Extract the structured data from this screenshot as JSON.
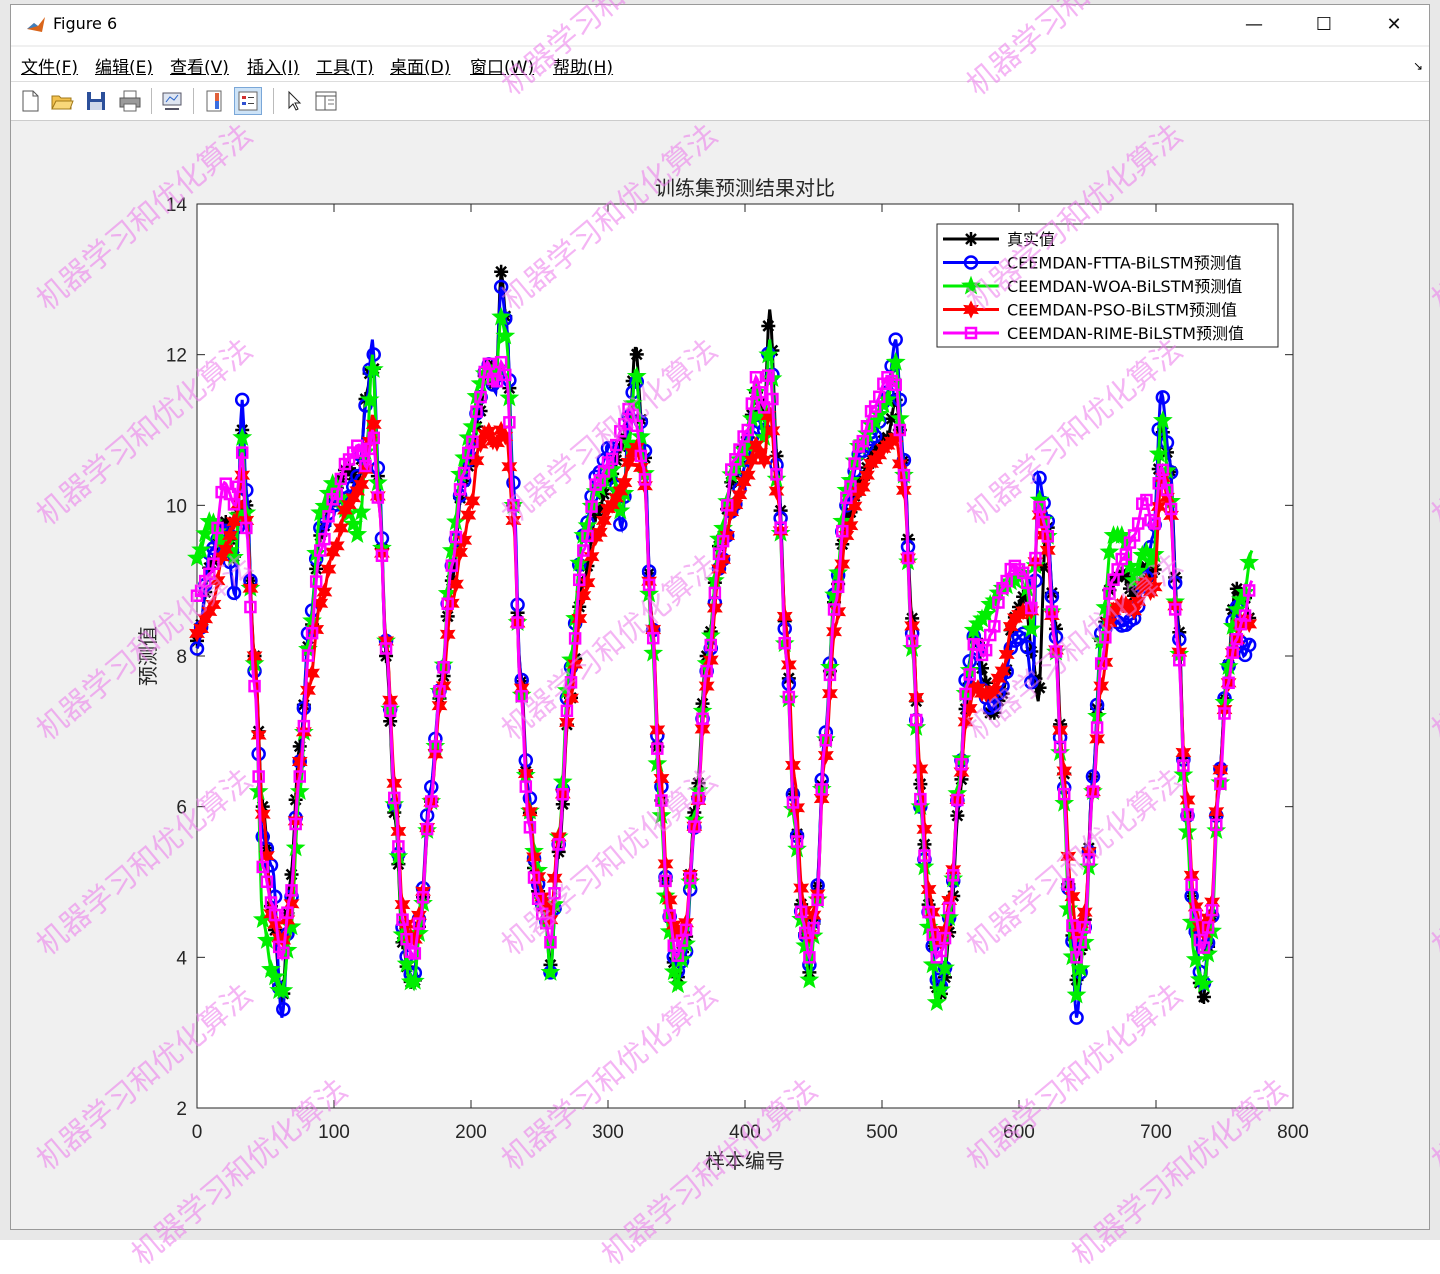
{
  "window": {
    "title": "Figure 6",
    "minimize": "—",
    "maximize": "☐",
    "close": "✕"
  },
  "menu": [
    "文件(F)",
    "编辑(E)",
    "查看(V)",
    "插入(I)",
    "工具(T)",
    "桌面(D)",
    "窗口(W)",
    "帮助(H)"
  ],
  "toolbar": [
    "new-figure-icon",
    "open-file-icon",
    "save-icon",
    "print-icon",
    "link-plot-icon",
    "insert-colorbar-icon",
    "insert-legend-icon",
    "select-pointer-icon",
    "property-inspector-icon"
  ],
  "watermark": "机器学习和优化算法",
  "chart_data": {
    "type": "line",
    "title": "训练集预测结果对比",
    "xlabel": "样本编号",
    "ylabel": "预测值",
    "xlim": [
      0,
      800
    ],
    "ylim": [
      2,
      14
    ],
    "xticks": [
      "0",
      "100",
      "200",
      "300",
      "400",
      "500",
      "600",
      "700",
      "800"
    ],
    "yticks": [
      "2",
      "4",
      "6",
      "8",
      "10",
      "12",
      "14"
    ],
    "legend_position": "top-right",
    "x_anchor": [
      0,
      10,
      20,
      28,
      33,
      36,
      42,
      48,
      55,
      62,
      68,
      75,
      82,
      90,
      100,
      110,
      118,
      124,
      128,
      133,
      138,
      145,
      150,
      155,
      158,
      163,
      170,
      178,
      186,
      194,
      200,
      206,
      212,
      218,
      222,
      226,
      231,
      236,
      242,
      248,
      254,
      258,
      264,
      272,
      282,
      292,
      302,
      310,
      316,
      320,
      326,
      332,
      338,
      344,
      350,
      356,
      364,
      372,
      382,
      392,
      402,
      408,
      414,
      418,
      424,
      430,
      436,
      442,
      447,
      452,
      458,
      466,
      474,
      484,
      494,
      504,
      510,
      516,
      522,
      528,
      534,
      540,
      544,
      550,
      556,
      562,
      568,
      574,
      580,
      588,
      596,
      604,
      610,
      614,
      620,
      626,
      632,
      638,
      642,
      648,
      654,
      660,
      668,
      676,
      684,
      692,
      698,
      704,
      710,
      716,
      722,
      728,
      734,
      740,
      746,
      752,
      758,
      764,
      770
    ],
    "series": [
      {
        "name": "真实值",
        "color": "#000000",
        "marker": "asterisk",
        "values": [
          8.2,
          9.2,
          9.8,
          9.3,
          11.0,
          10.0,
          8.0,
          6.0,
          4.6,
          3.4,
          5.0,
          6.8,
          8.2,
          9.6,
          10.2,
          10.5,
          10.3,
          11.5,
          12.0,
          10.2,
          8.0,
          5.8,
          4.2,
          3.7,
          3.6,
          4.5,
          6.0,
          7.5,
          9.0,
          10.3,
          10.6,
          11.2,
          11.9,
          11.5,
          13.1,
          12.4,
          10.0,
          7.8,
          6.0,
          4.9,
          4.6,
          3.9,
          5.4,
          7.4,
          9.0,
          9.9,
          10.4,
          10.8,
          11.2,
          12.1,
          10.8,
          8.5,
          6.2,
          4.6,
          3.7,
          4.2,
          6.0,
          8.0,
          9.5,
          10.4,
          10.9,
          11.5,
          11.2,
          12.6,
          10.5,
          8.3,
          6.0,
          4.6,
          3.8,
          4.8,
          6.8,
          8.8,
          9.8,
          10.3,
          10.7,
          10.9,
          11.4,
          10.6,
          8.5,
          6.3,
          4.7,
          3.6,
          3.5,
          4.4,
          6.0,
          7.4,
          8.3,
          7.8,
          7.2,
          7.5,
          8.5,
          8.8,
          8.0,
          7.4,
          9.8,
          8.5,
          6.6,
          4.4,
          3.7,
          4.5,
          6.4,
          8.2,
          9.0,
          9.1,
          8.8,
          9.2,
          9.0,
          11.0,
          10.6,
          8.5,
          6.0,
          4.4,
          3.4,
          4.4,
          6.4,
          7.8,
          8.9,
          8.8,
          8.4
        ]
      },
      {
        "name": "CEEMDAN-FTTA-BiLSTM预测值",
        "color": "#0000ff",
        "marker": "circle",
        "values": [
          8.1,
          9.4,
          9.7,
          8.8,
          11.4,
          10.2,
          7.8,
          5.6,
          5.2,
          3.2,
          4.7,
          6.6,
          8.4,
          9.7,
          10.0,
          10.1,
          10.4,
          11.4,
          12.2,
          10.3,
          8.2,
          5.9,
          4.4,
          3.8,
          3.7,
          4.6,
          6.2,
          7.6,
          9.2,
          10.3,
          10.7,
          11.4,
          11.9,
          11.5,
          12.9,
          12.4,
          10.3,
          7.8,
          6.2,
          5.0,
          4.6,
          3.8,
          5.5,
          7.8,
          9.6,
          10.4,
          10.8,
          9.7,
          11.3,
          11.7,
          10.9,
          8.5,
          6.4,
          4.6,
          3.8,
          4.0,
          5.8,
          7.8,
          9.2,
          10.0,
          10.6,
          11.2,
          11.0,
          12.2,
          10.4,
          8.2,
          6.0,
          4.5,
          3.9,
          4.8,
          6.9,
          8.9,
          10.0,
          10.7,
          10.9,
          11.5,
          12.2,
          10.6,
          8.3,
          6.0,
          4.6,
          3.7,
          3.6,
          4.6,
          6.2,
          7.8,
          8.3,
          7.5,
          7.3,
          7.6,
          8.2,
          8.3,
          7.6,
          10.4,
          9.9,
          8.4,
          6.4,
          4.4,
          3.2,
          4.4,
          6.4,
          8.3,
          8.5,
          8.4,
          8.5,
          9.0,
          9.6,
          11.5,
          10.6,
          8.4,
          6.0,
          4.4,
          3.6,
          4.4,
          6.4,
          7.8,
          8.7,
          8.0,
          8.2
        ]
      },
      {
        "name": "CEEMDAN-WOA-BiLSTM预测值",
        "color": "#00ee00",
        "marker": "pentagram",
        "values": [
          9.3,
          9.8,
          9.5,
          9.3,
          10.9,
          9.9,
          7.9,
          4.5,
          3.8,
          3.5,
          4.3,
          6.2,
          8.2,
          9.9,
          10.3,
          9.9,
          9.6,
          10.8,
          12.0,
          10.1,
          8.2,
          5.9,
          4.3,
          3.7,
          3.6,
          4.4,
          6.0,
          7.6,
          9.4,
          10.6,
          11.0,
          11.6,
          11.8,
          11.7,
          12.5,
          12.2,
          10.0,
          7.6,
          6.0,
          5.2,
          4.6,
          3.8,
          5.6,
          7.9,
          9.6,
          10.2,
          10.5,
          9.9,
          10.9,
          11.8,
          10.6,
          8.2,
          6.0,
          4.4,
          3.6,
          4.1,
          5.9,
          7.9,
          9.6,
          10.5,
          10.8,
          11.5,
          10.9,
          12.2,
          10.2,
          8.0,
          5.8,
          4.4,
          3.7,
          4.6,
          6.8,
          8.9,
          10.2,
          10.8,
          11.1,
          11.4,
          11.9,
          10.4,
          8.1,
          6.0,
          4.4,
          3.4,
          3.6,
          4.6,
          6.3,
          7.6,
          8.4,
          8.5,
          8.7,
          8.9,
          9.0,
          9.1,
          8.3,
          10.1,
          9.7,
          8.2,
          6.2,
          4.1,
          3.5,
          4.2,
          6.2,
          8.2,
          9.6,
          9.6,
          9.0,
          9.4,
          9.2,
          11.2,
          10.2,
          8.2,
          5.8,
          4.0,
          3.6,
          4.2,
          6.2,
          7.8,
          8.6,
          8.8,
          9.4
        ]
      },
      {
        "name": "CEEMDAN-PSO-BiLSTM预测值",
        "color": "#ff0000",
        "marker": "hexagram",
        "values": [
          8.3,
          8.6,
          9.4,
          9.8,
          10.4,
          9.8,
          8.0,
          5.9,
          4.5,
          4.2,
          4.6,
          6.6,
          7.6,
          8.7,
          9.4,
          10.0,
          10.2,
          10.5,
          11.2,
          10.0,
          8.2,
          6.2,
          4.7,
          4.3,
          4.2,
          4.6,
          6.0,
          7.4,
          8.7,
          9.5,
          10.0,
          10.8,
          11.0,
          10.8,
          11.0,
          10.9,
          9.8,
          7.7,
          6.0,
          5.1,
          4.7,
          4.5,
          5.6,
          7.4,
          8.8,
          9.6,
          10.0,
          10.2,
          10.6,
          10.8,
          10.4,
          8.5,
          6.5,
          4.8,
          4.3,
          4.4,
          5.8,
          7.6,
          9.2,
          10.0,
          10.4,
          10.8,
          10.6,
          11.3,
          10.1,
          8.4,
          6.4,
          4.8,
          4.3,
          4.7,
          6.6,
          8.4,
          9.6,
          10.2,
          10.6,
          10.8,
          10.9,
          10.2,
          8.4,
          6.5,
          4.9,
          4.3,
          4.2,
          4.8,
          6.2,
          7.2,
          7.6,
          7.5,
          7.5,
          7.8,
          8.5,
          8.6,
          8.6,
          9.9,
          9.5,
          8.2,
          6.6,
          4.9,
          4.3,
          4.6,
          6.2,
          7.6,
          8.6,
          8.7,
          8.6,
          9.0,
          8.8,
          10.4,
          10.0,
          8.2,
          6.2,
          4.7,
          4.3,
          4.6,
          6.4,
          7.6,
          8.2,
          8.5,
          8.4
        ]
      },
      {
        "name": "CEEMDAN-RIME-BiLSTM预测值",
        "color": "#ff00ff",
        "marker": "square",
        "values": [
          8.8,
          9.1,
          10.3,
          10.0,
          10.7,
          9.7,
          7.6,
          5.2,
          4.7,
          4.0,
          4.8,
          6.4,
          8.1,
          9.4,
          10.1,
          10.6,
          10.8,
          10.5,
          11.0,
          10.0,
          8.1,
          6.0,
          4.5,
          4.1,
          4.0,
          4.5,
          6.0,
          7.6,
          9.2,
          10.4,
          10.8,
          11.4,
          11.9,
          11.6,
          11.9,
          11.7,
          10.0,
          7.6,
          5.8,
          4.8,
          4.5,
          4.2,
          5.5,
          7.6,
          9.4,
          10.3,
          10.6,
          11.0,
          11.3,
          11.1,
          10.5,
          8.4,
          6.2,
          4.6,
          4.0,
          4.3,
          5.8,
          7.8,
          9.4,
          10.6,
          11.0,
          11.7,
          11.3,
          11.8,
          10.3,
          8.0,
          5.9,
          4.5,
          4.0,
          4.6,
          6.8,
          8.7,
          10.1,
          10.8,
          11.3,
          11.7,
          11.6,
          10.4,
          8.2,
          6.1,
          4.6,
          4.0,
          4.1,
          4.7,
          6.2,
          7.6,
          8.2,
          8.0,
          8.3,
          8.9,
          9.2,
          9.1,
          8.6,
          10.0,
          9.7,
          8.2,
          6.3,
          4.5,
          4.0,
          4.4,
          6.2,
          7.9,
          9.0,
          9.3,
          9.6,
          10.1,
          9.7,
          10.5,
          10.1,
          8.1,
          6.0,
          4.6,
          4.1,
          4.5,
          6.2,
          7.6,
          8.2,
          8.5,
          9.0
        ]
      }
    ]
  }
}
